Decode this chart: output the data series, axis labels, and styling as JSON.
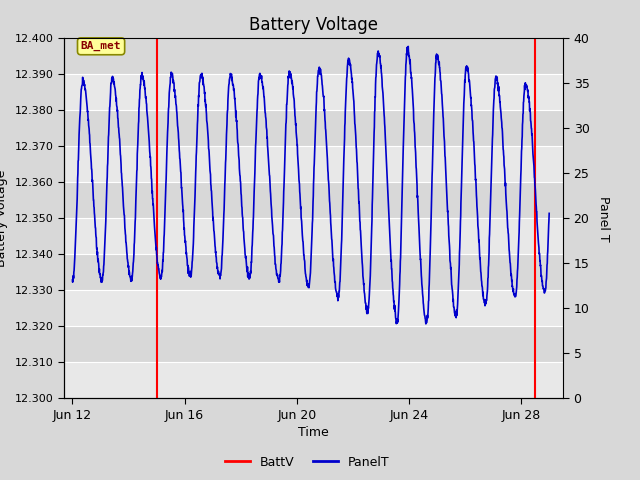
{
  "title": "Battery Voltage",
  "xlabel": "Time",
  "ylabel_left": "Battery Voltage",
  "ylabel_right": "Panel T",
  "ylim_left": [
    12.3,
    12.4
  ],
  "ylim_right": [
    0,
    40
  ],
  "yticks_left": [
    12.3,
    12.31,
    12.32,
    12.33,
    12.34,
    12.35,
    12.36,
    12.37,
    12.38,
    12.39,
    12.4
  ],
  "yticks_right": [
    0,
    5,
    10,
    15,
    20,
    25,
    30,
    35,
    40
  ],
  "xtick_labels": [
    "Jun 12",
    "Jun 16",
    "Jun 20",
    "Jun 24",
    "Jun 28"
  ],
  "xtick_positions": [
    0,
    4,
    8,
    12,
    16
  ],
  "xlim": [
    -0.3,
    17.5
  ],
  "vline1_x": 3.0,
  "vline2_x": 16.5,
  "annotation_text": "BA_met",
  "bg_color_outer": "#d8d8d8",
  "band_colors": [
    "#e8e8e8",
    "#d8d8d8"
  ],
  "line_color_batt": "#ff0000",
  "line_color_panel": "#0000cc",
  "annotation_bg": "#ffff99",
  "annotation_border": "#888800",
  "annotation_fg": "#880000",
  "title_fontsize": 12,
  "legend_items": [
    "BattV",
    "PanelT"
  ],
  "legend_colors": [
    "#ff0000",
    "#0000cc"
  ],
  "figsize": [
    6.4,
    4.8
  ],
  "dpi": 100
}
